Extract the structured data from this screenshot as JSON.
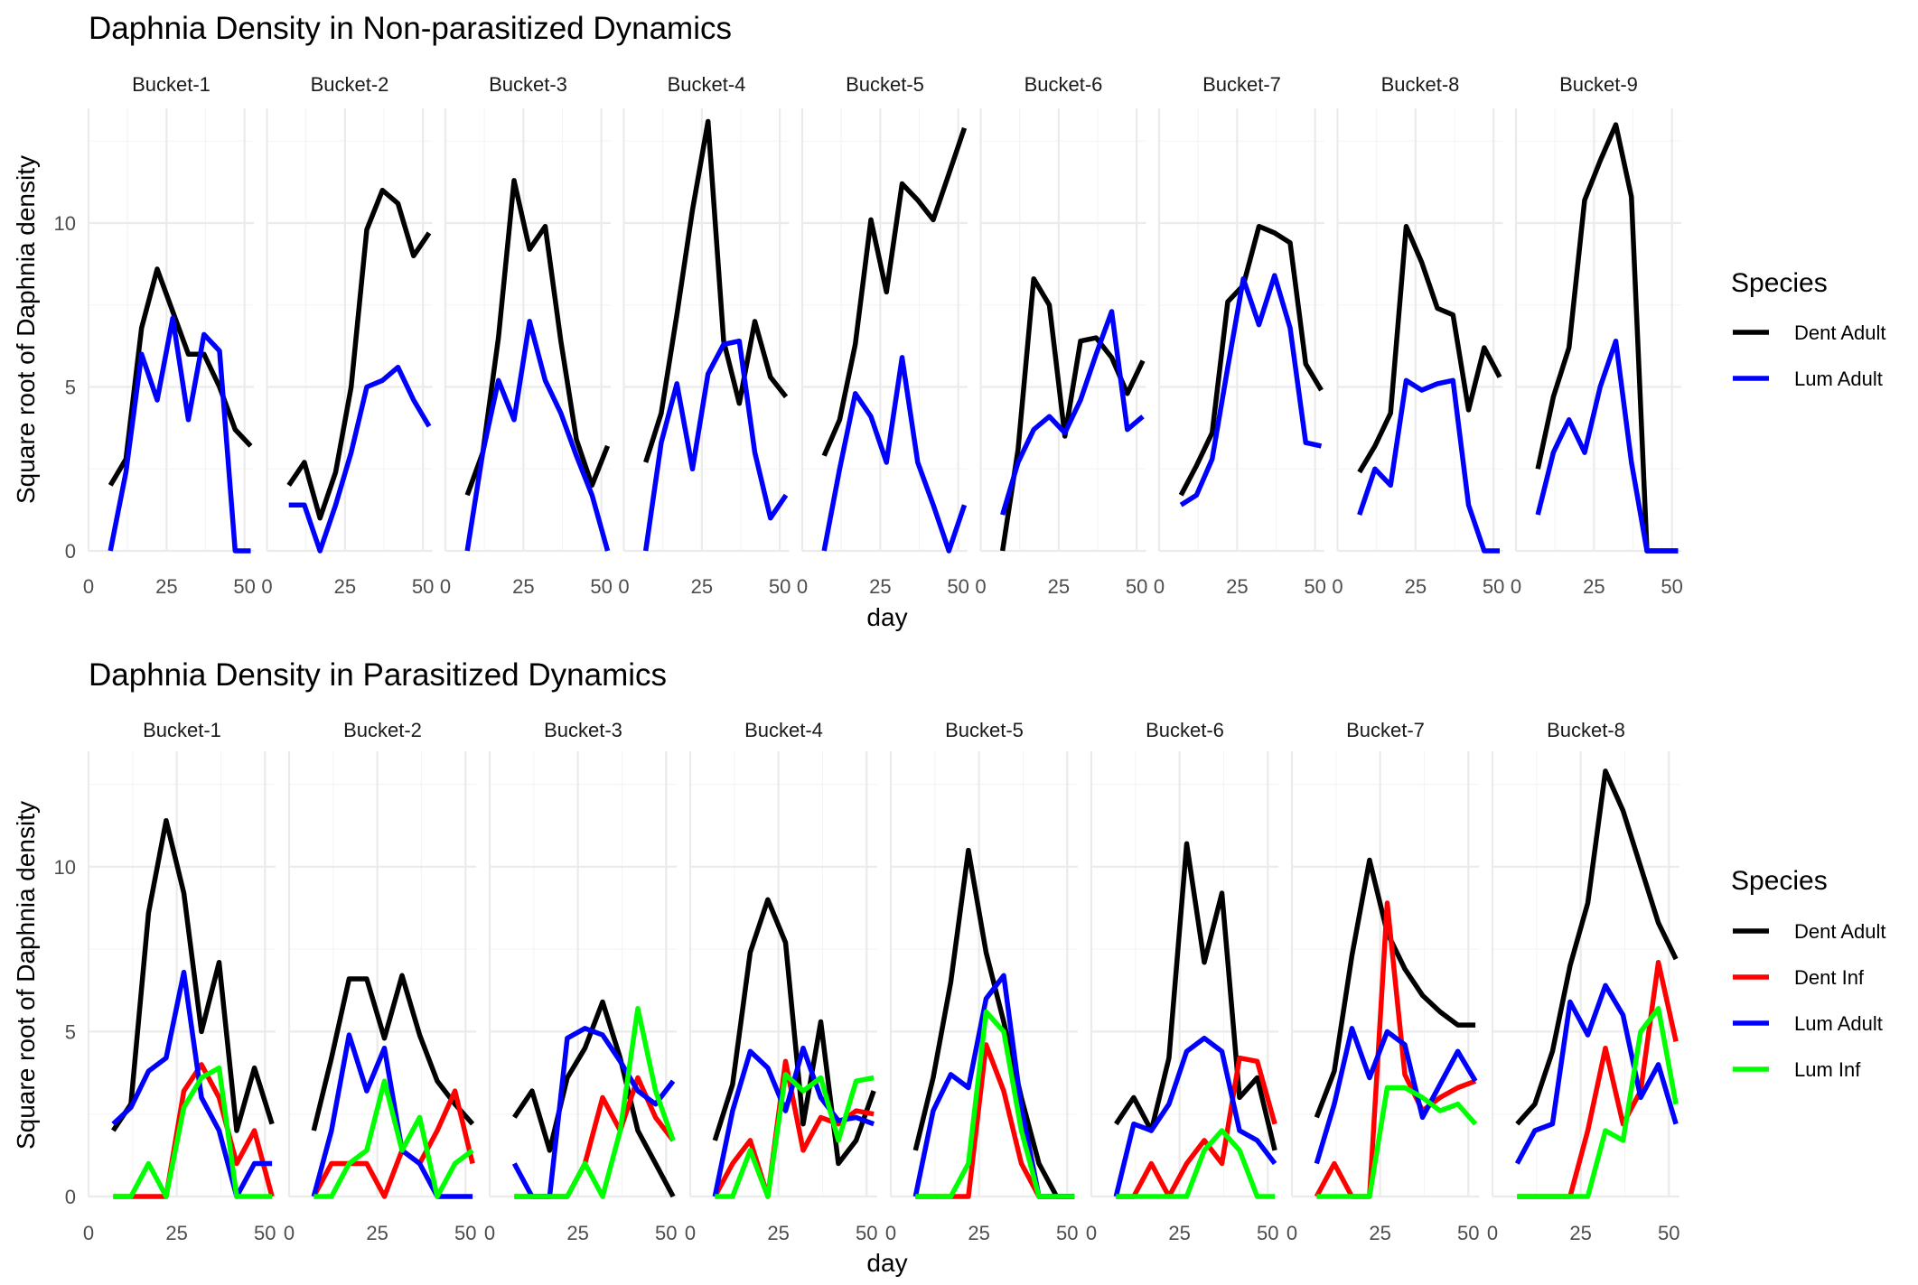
{
  "chart_data": [
    {
      "type": "line",
      "title": "Daphnia Density in Non-parasitized Dynamics",
      "xlabel": "day",
      "ylabel": "Square root of Daphnia density",
      "xlim": [
        0,
        53
      ],
      "ylim": [
        0,
        13.5
      ],
      "x_ticks": [
        0,
        25,
        50
      ],
      "y_ticks": [
        0,
        5,
        10
      ],
      "legend": {
        "title": "Species",
        "position": "right",
        "entries": [
          "Dent Adult",
          "Lum Adult"
        ]
      },
      "grid": true,
      "x": [
        7,
        12,
        17,
        22,
        27,
        32,
        37,
        42,
        47,
        52
      ],
      "colors": {
        "Dent Adult": "#000000",
        "Lum Adult": "#0000ff"
      },
      "panels": [
        {
          "name": "Bucket-1",
          "series": [
            {
              "name": "Dent Adult",
              "values": [
                2.0,
                2.8,
                6.8,
                8.6,
                7.3,
                6.0,
                6.0,
                5.0,
                3.7,
                3.2
              ]
            },
            {
              "name": "Lum Adult",
              "values": [
                0,
                2.4,
                6.0,
                4.6,
                7.1,
                4.0,
                6.6,
                6.1,
                0,
                0
              ]
            }
          ]
        },
        {
          "name": "Bucket-2",
          "series": [
            {
              "name": "Dent Adult",
              "values": [
                2.0,
                2.7,
                1.0,
                2.4,
                5.0,
                9.8,
                11.0,
                10.6,
                9.0,
                9.7
              ]
            },
            {
              "name": "Lum Adult",
              "values": [
                1.4,
                1.4,
                0,
                1.4,
                3.0,
                5.0,
                5.2,
                5.6,
                4.6,
                3.8
              ]
            }
          ]
        },
        {
          "name": "Bucket-3",
          "series": [
            {
              "name": "Dent Adult",
              "values": [
                1.7,
                3.0,
                6.5,
                11.3,
                9.2,
                9.9,
                6.4,
                3.4,
                2.0,
                3.2
              ]
            },
            {
              "name": "Lum Adult",
              "values": [
                0,
                3.0,
                5.2,
                4.0,
                7.0,
                5.2,
                4.2,
                2.9,
                1.7,
                0
              ]
            }
          ]
        },
        {
          "name": "Bucket-4",
          "series": [
            {
              "name": "Dent Adult",
              "values": [
                2.7,
                4.2,
                7.2,
                10.4,
                13.1,
                6.4,
                4.5,
                7.0,
                5.3,
                4.7
              ]
            },
            {
              "name": "Lum Adult",
              "values": [
                0,
                3.3,
                5.1,
                2.5,
                5.4,
                6.3,
                6.4,
                3.0,
                1.0,
                1.7
              ]
            }
          ]
        },
        {
          "name": "Bucket-5",
          "series": [
            {
              "name": "Dent Adult",
              "values": [
                2.9,
                4.0,
                6.3,
                10.1,
                7.9,
                11.2,
                10.7,
                10.1,
                11.5,
                12.9
              ]
            },
            {
              "name": "Lum Adult",
              "values": [
                0,
                2.5,
                4.8,
                4.1,
                2.7,
                5.9,
                2.7,
                1.4,
                0,
                1.4
              ]
            }
          ]
        },
        {
          "name": "Bucket-6",
          "series": [
            {
              "name": "Dent Adult",
              "values": [
                0,
                3.1,
                8.3,
                7.5,
                3.5,
                6.4,
                6.5,
                5.9,
                4.8,
                5.8
              ]
            },
            {
              "name": "Lum Adult",
              "values": [
                1.1,
                2.7,
                3.7,
                4.1,
                3.6,
                4.6,
                6.0,
                7.3,
                3.7,
                4.1
              ]
            }
          ]
        },
        {
          "name": "Bucket-7",
          "series": [
            {
              "name": "Dent Adult",
              "values": [
                1.7,
                2.6,
                3.6,
                7.6,
                8.1,
                9.9,
                9.7,
                9.4,
                5.7,
                4.9
              ]
            },
            {
              "name": "Lum Adult",
              "values": [
                1.4,
                1.7,
                2.8,
                5.6,
                8.3,
                6.9,
                8.4,
                6.8,
                3.3,
                3.2
              ]
            }
          ]
        },
        {
          "name": "Bucket-8",
          "series": [
            {
              "name": "Dent Adult",
              "values": [
                2.4,
                3.2,
                4.2,
                9.9,
                8.8,
                7.4,
                7.2,
                4.3,
                6.2,
                5.3
              ]
            },
            {
              "name": "Lum Adult",
              "values": [
                1.1,
                2.5,
                2.0,
                5.2,
                4.9,
                5.1,
                5.2,
                1.4,
                0,
                0
              ]
            }
          ]
        },
        {
          "name": "Bucket-9",
          "series": [
            {
              "name": "Dent Adult",
              "values": [
                2.5,
                4.7,
                6.2,
                10.7,
                11.9,
                13.0,
                10.8,
                0,
                0,
                0
              ]
            },
            {
              "name": "Lum Adult",
              "values": [
                1.1,
                3.0,
                4.0,
                3.0,
                5.0,
                6.4,
                2.7,
                0,
                0,
                0
              ]
            }
          ]
        }
      ]
    },
    {
      "type": "line",
      "title": "Daphnia Density in Parasitized Dynamics",
      "xlabel": "day",
      "ylabel": "Square root of Daphnia density",
      "xlim": [
        0,
        53
      ],
      "ylim": [
        0,
        13.5
      ],
      "x_ticks": [
        0,
        25,
        50
      ],
      "y_ticks": [
        0,
        5,
        10
      ],
      "legend": {
        "title": "Species",
        "position": "right",
        "entries": [
          "Dent Adult",
          "Dent Inf",
          "Lum Adult",
          "Lum Inf"
        ]
      },
      "grid": true,
      "x": [
        7,
        12,
        17,
        22,
        27,
        32,
        37,
        42,
        47,
        52
      ],
      "colors": {
        "Dent Adult": "#000000",
        "Dent Inf": "#ff0000",
        "Lum Adult": "#0000ff",
        "Lum Inf": "#00ff00"
      },
      "panels": [
        {
          "name": "Bucket-1",
          "series": [
            {
              "name": "Dent Adult",
              "values": [
                2.0,
                2.8,
                8.6,
                11.4,
                9.2,
                5.0,
                7.1,
                2.0,
                3.9,
                2.2
              ]
            },
            {
              "name": "Dent Inf",
              "values": [
                0,
                0,
                0,
                0,
                3.2,
                4.0,
                3.0,
                1.0,
                2.0,
                0
              ]
            },
            {
              "name": "Lum Adult",
              "values": [
                2.2,
                2.7,
                3.8,
                4.2,
                6.8,
                3.0,
                2.0,
                0,
                1.0,
                1.0
              ]
            },
            {
              "name": "Lum Inf",
              "values": [
                0,
                0,
                1.0,
                0,
                2.7,
                3.6,
                3.9,
                0,
                0,
                0
              ]
            }
          ]
        },
        {
          "name": "Bucket-2",
          "series": [
            {
              "name": "Dent Adult",
              "values": [
                2.0,
                4.2,
                6.6,
                6.6,
                4.8,
                6.7,
                4.9,
                3.5,
                2.8,
                2.2
              ]
            },
            {
              "name": "Dent Inf",
              "values": [
                0,
                1.0,
                1.0,
                1.0,
                0,
                1.4,
                1.0,
                2.0,
                3.2,
                1.0
              ]
            },
            {
              "name": "Lum Adult",
              "values": [
                0,
                2.0,
                4.9,
                3.2,
                4.5,
                1.4,
                1.0,
                0,
                0,
                0
              ]
            },
            {
              "name": "Lum Inf",
              "values": [
                0,
                0,
                1.0,
                1.4,
                3.5,
                1.4,
                2.4,
                0,
                1.0,
                1.4
              ]
            }
          ]
        },
        {
          "name": "Bucket-3",
          "series": [
            {
              "name": "Dent Adult",
              "values": [
                2.4,
                3.2,
                1.4,
                3.6,
                4.5,
                5.9,
                4.2,
                2.0,
                1.0,
                0
              ]
            },
            {
              "name": "Dent Inf",
              "values": [
                0,
                0,
                0,
                0,
                1.0,
                3.0,
                2.0,
                3.6,
                2.4,
                1.7
              ]
            },
            {
              "name": "Lum Adult",
              "values": [
                1.0,
                0,
                0,
                4.8,
                5.1,
                4.9,
                4.1,
                3.2,
                2.8,
                3.5
              ]
            },
            {
              "name": "Lum Inf",
              "values": [
                0,
                0,
                0,
                0,
                1.0,
                0,
                2.0,
                5.7,
                3.2,
                1.7
              ]
            }
          ]
        },
        {
          "name": "Bucket-4",
          "series": [
            {
              "name": "Dent Adult",
              "values": [
                1.7,
                3.4,
                7.4,
                9.0,
                7.7,
                2.2,
                5.3,
                1.0,
                1.7,
                3.2
              ]
            },
            {
              "name": "Dent Inf",
              "values": [
                0,
                1.0,
                1.7,
                0,
                4.1,
                1.4,
                2.4,
                2.2,
                2.6,
                2.5
              ]
            },
            {
              "name": "Lum Adult",
              "values": [
                0,
                2.6,
                4.4,
                3.9,
                2.6,
                4.5,
                3.0,
                2.3,
                2.4,
                2.2
              ]
            },
            {
              "name": "Lum Inf",
              "values": [
                0,
                0,
                1.4,
                0,
                3.7,
                3.2,
                3.6,
                1.7,
                3.5,
                3.6
              ]
            }
          ]
        },
        {
          "name": "Bucket-5",
          "series": [
            {
              "name": "Dent Adult",
              "values": [
                1.4,
                3.6,
                6.5,
                10.5,
                7.4,
                5.3,
                3.0,
                1.0,
                0,
                0
              ]
            },
            {
              "name": "Dent Inf",
              "values": [
                0,
                0,
                0,
                0,
                4.6,
                3.2,
                1.0,
                0,
                0,
                0
              ]
            },
            {
              "name": "Lum Adult",
              "values": [
                0,
                2.6,
                3.7,
                3.3,
                6.0,
                6.7,
                2.7,
                0,
                0,
                0
              ]
            },
            {
              "name": "Lum Inf",
              "values": [
                0,
                0,
                0,
                1.0,
                5.6,
                5.0,
                2.0,
                0,
                0,
                0
              ]
            }
          ]
        },
        {
          "name": "Bucket-6",
          "series": [
            {
              "name": "Dent Adult",
              "values": [
                2.2,
                3.0,
                2.0,
                4.2,
                10.7,
                7.1,
                9.2,
                3.0,
                3.6,
                1.4
              ]
            },
            {
              "name": "Dent Inf",
              "values": [
                0,
                0,
                1.0,
                0,
                1.0,
                1.7,
                1.0,
                4.2,
                4.1,
                2.2
              ]
            },
            {
              "name": "Lum Adult",
              "values": [
                0,
                2.2,
                2.0,
                2.8,
                4.4,
                4.8,
                4.4,
                2.0,
                1.7,
                1.0
              ]
            },
            {
              "name": "Lum Inf",
              "values": [
                0,
                0,
                0,
                0,
                0,
                1.4,
                2.0,
                1.4,
                0,
                0
              ]
            }
          ]
        },
        {
          "name": "Bucket-7",
          "series": [
            {
              "name": "Dent Adult",
              "values": [
                2.4,
                3.8,
                7.3,
                10.2,
                8.0,
                6.9,
                6.1,
                5.6,
                5.2,
                5.2
              ]
            },
            {
              "name": "Dent Inf",
              "values": [
                0,
                1.0,
                0,
                0,
                8.9,
                3.7,
                2.6,
                3.0,
                3.3,
                3.5
              ]
            },
            {
              "name": "Lum Adult",
              "values": [
                1.0,
                2.8,
                5.1,
                3.6,
                5.0,
                4.6,
                2.4,
                3.4,
                4.4,
                3.5
              ]
            },
            {
              "name": "Lum Inf",
              "values": [
                0,
                0,
                0,
                0,
                3.3,
                3.3,
                3.0,
                2.6,
                2.8,
                2.2
              ]
            }
          ]
        },
        {
          "name": "Bucket-8",
          "series": [
            {
              "name": "Dent Adult",
              "values": [
                2.2,
                2.8,
                4.4,
                7.0,
                8.9,
                12.9,
                11.7,
                10.0,
                8.3,
                7.2
              ]
            },
            {
              "name": "Dent Inf",
              "values": [
                0,
                0,
                0,
                0,
                2.0,
                4.5,
                2.2,
                3.2,
                7.1,
                4.7
              ]
            },
            {
              "name": "Lum Adult",
              "values": [
                1.0,
                2.0,
                2.2,
                5.9,
                4.9,
                6.4,
                5.5,
                3.0,
                4.0,
                2.2
              ]
            },
            {
              "name": "Lum Inf",
              "values": [
                0,
                0,
                0,
                0,
                0,
                2.0,
                1.7,
                5.0,
                5.7,
                2.8
              ]
            }
          ]
        }
      ]
    }
  ]
}
